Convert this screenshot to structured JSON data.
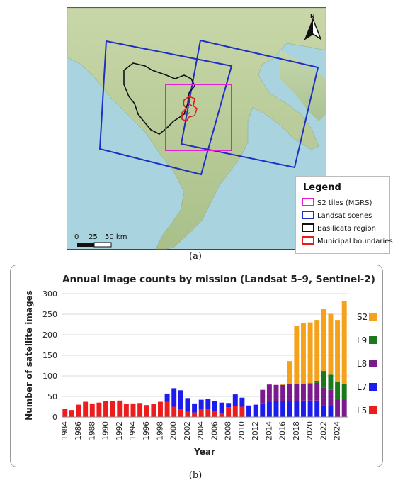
{
  "map": {
    "legend_title": "Legend",
    "legend_items": [
      {
        "label": "S2 tiles (MGRS)",
        "color": "#e51fd4"
      },
      {
        "label": "Landsat scenes",
        "color": "#1f2fc4"
      },
      {
        "label": "Basilicata region",
        "color": "#111111"
      },
      {
        "label": "Municipal boundaries",
        "color": "#e01e1e"
      }
    ],
    "north_label": "N",
    "scale_labels": [
      "0",
      "25",
      "50 km"
    ]
  },
  "captions": {
    "a": "(a)",
    "b": "(b)"
  },
  "chart_data": {
    "type": "bar",
    "stacked": true,
    "title": "Annual image counts by mission (Landsat 5–9, Sentinel-2)",
    "xlabel": "Year",
    "ylabel": "Number of satellite images",
    "ylim": [
      0,
      300
    ],
    "yticks": [
      0,
      50,
      100,
      150,
      200,
      250,
      300
    ],
    "grid": "horizontal",
    "legend_position": "right",
    "categories": [
      1984,
      1985,
      1986,
      1987,
      1988,
      1989,
      1990,
      1991,
      1992,
      1993,
      1994,
      1995,
      1996,
      1997,
      1998,
      1999,
      2000,
      2001,
      2002,
      2003,
      2004,
      2005,
      2006,
      2007,
      2008,
      2009,
      2010,
      2011,
      2012,
      2013,
      2014,
      2015,
      2016,
      2017,
      2018,
      2019,
      2020,
      2021,
      2022,
      2023,
      2024,
      2025
    ],
    "xtick_labels": [
      "1984",
      "1986",
      "1988",
      "1990",
      "1992",
      "1994",
      "1996",
      "1998",
      "2000",
      "2002",
      "2004",
      "2006",
      "2008",
      "2010",
      "2012",
      "2014",
      "2016",
      "2018",
      "2020",
      "2022",
      "2024"
    ],
    "series": [
      {
        "name": "L5",
        "color": "#ee1c1c",
        "values": [
          20,
          17,
          30,
          37,
          33,
          35,
          38,
          39,
          40,
          32,
          33,
          34,
          29,
          32,
          37,
          37,
          25,
          20,
          13,
          11,
          20,
          19,
          14,
          10,
          24,
          27,
          25,
          0,
          0,
          0,
          0,
          0,
          0,
          0,
          0,
          0,
          0,
          0,
          0,
          0,
          0,
          0
        ]
      },
      {
        "name": "L7",
        "color": "#1c1cee",
        "values": [
          0,
          0,
          0,
          0,
          0,
          0,
          0,
          0,
          0,
          0,
          0,
          0,
          0,
          0,
          0,
          20,
          45,
          45,
          33,
          22,
          22,
          25,
          24,
          25,
          10,
          28,
          22,
          28,
          30,
          33,
          37,
          38,
          38,
          38,
          39,
          40,
          40,
          40,
          29,
          26,
          0,
          0
        ]
      },
      {
        "name": "L8",
        "color": "#7b1a8c",
        "values": [
          0,
          0,
          0,
          0,
          0,
          0,
          0,
          0,
          0,
          0,
          0,
          0,
          0,
          0,
          0,
          0,
          0,
          0,
          0,
          0,
          0,
          0,
          0,
          0,
          0,
          0,
          0,
          0,
          0,
          33,
          42,
          40,
          40,
          43,
          41,
          40,
          42,
          43,
          43,
          40,
          43,
          43
        ]
      },
      {
        "name": "L9",
        "color": "#1a7a1a",
        "values": [
          0,
          0,
          0,
          0,
          0,
          0,
          0,
          0,
          0,
          0,
          0,
          0,
          0,
          0,
          0,
          0,
          0,
          0,
          0,
          0,
          0,
          0,
          0,
          0,
          0,
          0,
          0,
          0,
          0,
          0,
          0,
          0,
          0,
          0,
          0,
          0,
          0,
          5,
          40,
          37,
          43,
          38
        ]
      },
      {
        "name": "S2",
        "color": "#f5a21a",
        "values": [
          0,
          0,
          0,
          0,
          0,
          0,
          0,
          0,
          0,
          0,
          0,
          0,
          0,
          0,
          0,
          0,
          0,
          0,
          0,
          0,
          0,
          0,
          0,
          0,
          0,
          0,
          0,
          0,
          0,
          0,
          0,
          0,
          3,
          55,
          142,
          148,
          148,
          148,
          150,
          148,
          150,
          200
        ]
      }
    ]
  }
}
